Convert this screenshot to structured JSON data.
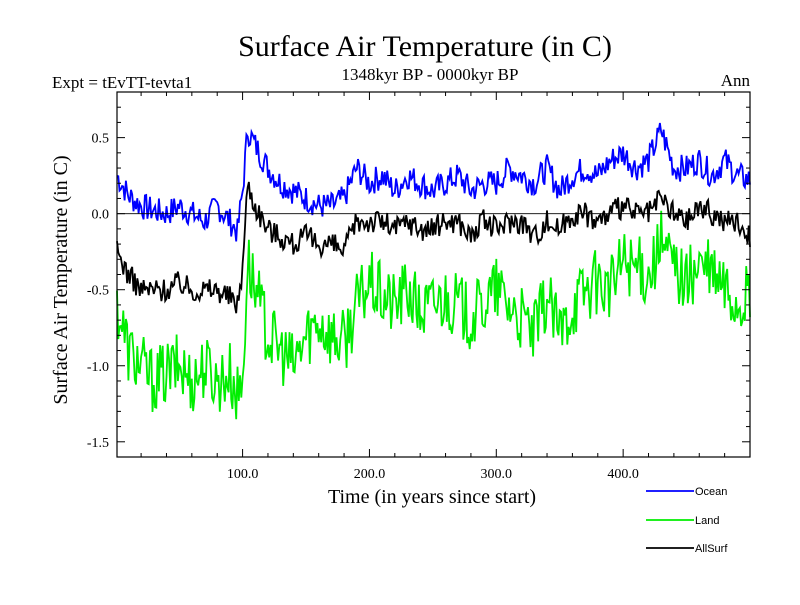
{
  "chart_data": {
    "type": "line",
    "title": "Surface Air Temperature (in C)",
    "experiment": "Expt = tEvTT-tevta1",
    "period": "1348kyr BP - 0000kyr BP",
    "season": "Ann",
    "xlabel": "Time (in years since start)",
    "ylabel": "Surface Air Temperature (in C)",
    "xlim": [
      1,
      500
    ],
    "ylim": [
      -1.6,
      0.8
    ],
    "xticks": [
      100,
      200,
      300,
      400
    ],
    "xtick_labels": [
      "100.0",
      "200.0",
      "300.0",
      "400.0"
    ],
    "yticks": [
      0.5,
      0.0,
      -0.5,
      -1.0,
      -1.5
    ],
    "ytick_labels": [
      "0.5",
      "0.0",
      "-0.5",
      "-1.0",
      "-1.5"
    ],
    "zero_line": 0.0,
    "series": [
      {
        "name": "Ocean",
        "color": "#0000ff",
        "x": [
          1,
          10,
          20,
          30,
          40,
          50,
          60,
          70,
          80,
          90,
          96,
          100,
          104,
          110,
          120,
          130,
          140,
          150,
          160,
          170,
          180,
          190,
          200,
          210,
          220,
          230,
          240,
          250,
          260,
          270,
          280,
          290,
          300,
          310,
          320,
          330,
          340,
          350,
          360,
          370,
          380,
          390,
          400,
          410,
          420,
          430,
          440,
          450,
          460,
          470,
          480,
          490,
          500
        ],
        "values": [
          0.25,
          0.12,
          0.05,
          0.02,
          0.0,
          0.05,
          0.0,
          -0.05,
          0.05,
          -0.05,
          -0.12,
          0.15,
          0.55,
          0.45,
          0.3,
          0.2,
          0.15,
          0.1,
          0.05,
          0.05,
          0.1,
          0.3,
          0.2,
          0.25,
          0.15,
          0.25,
          0.2,
          0.15,
          0.2,
          0.25,
          0.15,
          0.2,
          0.2,
          0.3,
          0.25,
          0.2,
          0.3,
          0.15,
          0.25,
          0.3,
          0.25,
          0.35,
          0.4,
          0.3,
          0.35,
          0.55,
          0.3,
          0.3,
          0.35,
          0.25,
          0.35,
          0.25,
          0.22
        ]
      },
      {
        "name": "Land",
        "color": "#00ee00",
        "x": [
          1,
          10,
          20,
          30,
          40,
          50,
          60,
          70,
          80,
          90,
          96,
          100,
          104,
          110,
          120,
          130,
          140,
          150,
          160,
          170,
          180,
          190,
          200,
          210,
          220,
          230,
          240,
          250,
          260,
          270,
          280,
          290,
          300,
          310,
          320,
          330,
          340,
          350,
          360,
          370,
          380,
          390,
          400,
          410,
          420,
          430,
          440,
          450,
          460,
          470,
          480,
          490,
          500
        ],
        "values": [
          -0.6,
          -0.9,
          -1.0,
          -1.1,
          -1.05,
          -1.0,
          -1.1,
          -1.0,
          -1.1,
          -1.05,
          -1.2,
          -1.1,
          -0.3,
          -0.5,
          -0.8,
          -0.9,
          -1.0,
          -0.8,
          -0.7,
          -0.8,
          -0.85,
          -0.6,
          -0.45,
          -0.55,
          -0.6,
          -0.5,
          -0.65,
          -0.6,
          -0.55,
          -0.6,
          -0.7,
          -0.6,
          -0.5,
          -0.6,
          -0.7,
          -0.8,
          -0.55,
          -0.8,
          -0.6,
          -0.5,
          -0.45,
          -0.5,
          -0.3,
          -0.35,
          -0.4,
          -0.2,
          -0.35,
          -0.45,
          -0.35,
          -0.4,
          -0.5,
          -0.6,
          -0.55
        ]
      },
      {
        "name": "AllSurf",
        "color": "#000000",
        "x": [
          1,
          10,
          20,
          30,
          40,
          50,
          60,
          70,
          80,
          90,
          96,
          100,
          104,
          110,
          120,
          130,
          140,
          150,
          160,
          170,
          180,
          190,
          200,
          210,
          220,
          230,
          240,
          250,
          260,
          270,
          280,
          290,
          300,
          310,
          320,
          330,
          340,
          350,
          360,
          370,
          380,
          390,
          400,
          410,
          420,
          430,
          440,
          450,
          460,
          470,
          480,
          490,
          500
        ],
        "values": [
          -0.25,
          -0.4,
          -0.5,
          -0.5,
          -0.5,
          -0.45,
          -0.5,
          -0.5,
          -0.5,
          -0.55,
          -0.6,
          -0.35,
          0.2,
          0.05,
          -0.1,
          -0.15,
          -0.2,
          -0.15,
          -0.2,
          -0.2,
          -0.25,
          -0.05,
          -0.05,
          -0.05,
          -0.1,
          -0.05,
          -0.1,
          -0.1,
          -0.05,
          -0.05,
          -0.15,
          -0.05,
          -0.1,
          -0.05,
          -0.05,
          -0.15,
          -0.05,
          -0.1,
          0.0,
          0.0,
          -0.05,
          0.0,
          0.05,
          0.0,
          0.0,
          0.1,
          0.0,
          -0.05,
          0.05,
          0.0,
          -0.05,
          -0.05,
          -0.15
        ]
      }
    ],
    "legend": {
      "position": "bottom-right",
      "entries": [
        "Ocean",
        "Land",
        "AllSurf"
      ]
    }
  }
}
